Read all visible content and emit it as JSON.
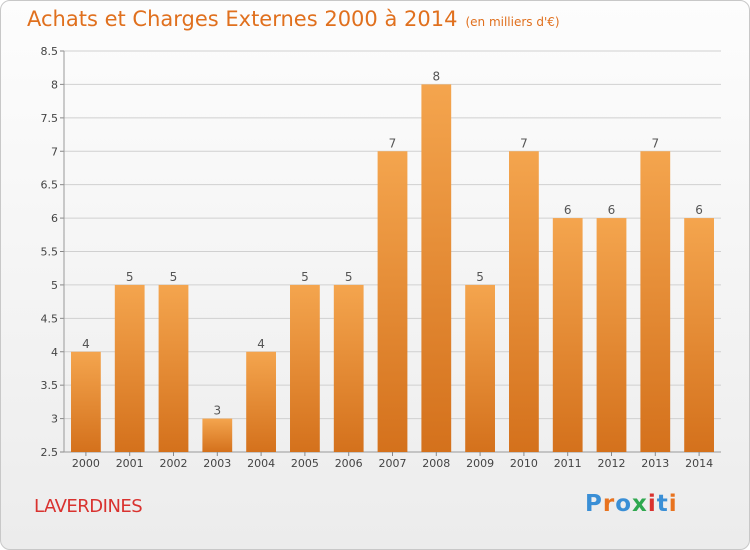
{
  "header": {
    "title": "Achats et Charges Externes 2000 à 2014",
    "subtitle": "(en milliers d'€)"
  },
  "footer": {
    "commune": "LAVERDINES",
    "logo": "Proxiti",
    "logo_colors": [
      "#3a8fd6",
      "#e8731f",
      "#3a8fd6",
      "#2fa84f",
      "#d9322f",
      "#3a8fd6",
      "#e8731f"
    ]
  },
  "colors": {
    "bar_top": "#f4a54e",
    "bar_bottom": "#d4711c",
    "title": "#e0701e",
    "commune": "#d9322f",
    "grid": "#d0d0d0"
  },
  "chart_data": {
    "type": "bar",
    "title": "Achats et Charges Externes 2000 à 2014",
    "categories": [
      "2000",
      "2001",
      "2002",
      "2003",
      "2004",
      "2005",
      "2006",
      "2007",
      "2008",
      "2009",
      "2010",
      "2011",
      "2012",
      "2013",
      "2014"
    ],
    "values": [
      4,
      5,
      5,
      3,
      4,
      5,
      5,
      7,
      8,
      5,
      7,
      6,
      6,
      7,
      6
    ],
    "data_labels": [
      "4",
      "5",
      "5",
      "3",
      "4",
      "5",
      "5",
      "7",
      "8",
      "5",
      "7",
      "6",
      "6",
      "7",
      "6"
    ],
    "ylim": [
      2.5,
      8.5
    ],
    "yticks": [
      "2.5",
      "3",
      "3.5",
      "4",
      "4.5",
      "5",
      "5.5",
      "6",
      "6.5",
      "7",
      "7.5",
      "8",
      "8.5"
    ],
    "grid": true
  }
}
